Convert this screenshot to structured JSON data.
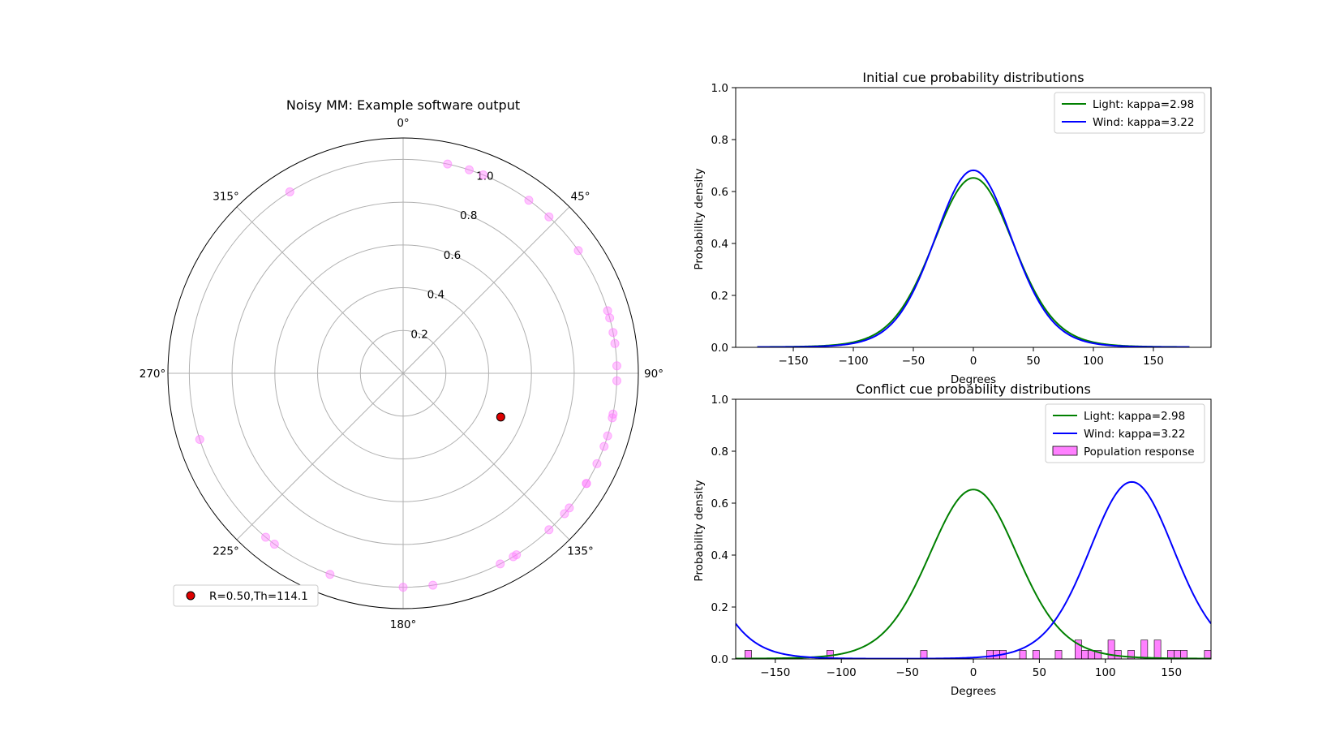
{
  "chart_data": [
    {
      "type": "scatter",
      "projection": "polar",
      "title": "Noisy MM: Example software output",
      "theta_zero_location": "top",
      "theta_direction": "clockwise",
      "angle_tick_labels": [
        "0°",
        "45°",
        "90°",
        "135°",
        "180°",
        "225°",
        "270°",
        "315°"
      ],
      "radial_ticks": [
        0.2,
        0.4,
        0.6,
        0.8,
        1.0
      ],
      "radial_tick_labels": [
        "0.2",
        "0.4",
        "0.6",
        "0.8",
        "1.0"
      ],
      "rlim": [
        0,
        1.1
      ],
      "grid": true,
      "series": [
        {
          "name": "",
          "role": "individual responses",
          "color": "#ff80ff",
          "r": 1.0,
          "theta_deg": [
            -32,
            12,
            18,
            22,
            36,
            43,
            55,
            73,
            75,
            79,
            82,
            88,
            92,
            101,
            102,
            107,
            110,
            115,
            121,
            121,
            129,
            131,
            137,
            148,
            149,
            153,
            172,
            180,
            200,
            217,
            220,
            252
          ]
        },
        {
          "name": "R=0.50,Th=114.1",
          "role": "mean vector",
          "color": "#dd0000",
          "r": 0.5,
          "theta_deg": 114.1
        }
      ],
      "legend": {
        "location": "bottom-left",
        "entries": [
          "R=0.50,Th=114.1"
        ]
      }
    },
    {
      "type": "line",
      "title": "Initial cue probability distributions",
      "xlabel": "Degrees",
      "ylabel": "Probability density",
      "xlim": [
        -198,
        198
      ],
      "ylim": [
        0,
        1.0
      ],
      "x_ticks": [
        -150,
        -100,
        -50,
        0,
        50,
        100,
        150
      ],
      "x_tick_labels": [
        "−150",
        "−100",
        "−50",
        "0",
        "50",
        "100",
        "150"
      ],
      "y_ticks": [
        0.0,
        0.2,
        0.4,
        0.6,
        0.8,
        1.0
      ],
      "y_tick_labels": [
        "0.0",
        "0.2",
        "0.4",
        "0.6",
        "0.8",
        "1.0"
      ],
      "x_range": [
        -180,
        180
      ],
      "series": [
        {
          "name": "Light: kappa=2.98",
          "color": "#008000",
          "distribution": "von Mises",
          "kappa": 2.98,
          "mu": 0
        },
        {
          "name": "Wind: kappa=3.22",
          "color": "#0000ff",
          "distribution": "von Mises",
          "kappa": 3.22,
          "mu": 0
        }
      ],
      "legend": {
        "location": "top-right",
        "entries": [
          "Light: kappa=2.98",
          "Wind: kappa=3.22"
        ]
      }
    },
    {
      "type": "line",
      "title": "Conflict cue probability distributions",
      "xlabel": "Degrees",
      "ylabel": "Probability density",
      "xlim": [
        -180,
        180
      ],
      "ylim": [
        0,
        1.0
      ],
      "x_ticks": [
        -150,
        -100,
        -50,
        0,
        50,
        100,
        150
      ],
      "x_tick_labels": [
        "−150",
        "−100",
        "−50",
        "0",
        "50",
        "100",
        "150"
      ],
      "y_ticks": [
        0.0,
        0.2,
        0.4,
        0.6,
        0.8,
        1.0
      ],
      "y_tick_labels": [
        "0.0",
        "0.2",
        "0.4",
        "0.6",
        "0.8",
        "1.0"
      ],
      "x_range": [
        -180,
        180
      ],
      "series": [
        {
          "name": "Light: kappa=2.98",
          "color": "#008000",
          "distribution": "von Mises",
          "kappa": 2.98,
          "mu": 0
        },
        {
          "name": "Wind: kappa=3.22",
          "color": "#0000ff",
          "distribution": "von Mises",
          "kappa": 3.22,
          "mu": 120
        }
      ],
      "histogram": {
        "name": "Population response",
        "color": "#ff80ff",
        "edgecolor": "#000000",
        "bin_width": 5,
        "bins": [
          {
            "x0": -173,
            "density": 0.033
          },
          {
            "x0": -111,
            "density": 0.033
          },
          {
            "x0": -40,
            "density": 0.033
          },
          {
            "x0": 10,
            "density": 0.033
          },
          {
            "x0": 15,
            "density": 0.033
          },
          {
            "x0": 20,
            "density": 0.033
          },
          {
            "x0": 35,
            "density": 0.033
          },
          {
            "x0": 45,
            "density": 0.033
          },
          {
            "x0": 62,
            "density": 0.033
          },
          {
            "x0": 77,
            "density": 0.073
          },
          {
            "x0": 82,
            "density": 0.033
          },
          {
            "x0": 87,
            "density": 0.033
          },
          {
            "x0": 92,
            "density": 0.033
          },
          {
            "x0": 102,
            "density": 0.073
          },
          {
            "x0": 107,
            "density": 0.033
          },
          {
            "x0": 117,
            "density": 0.033
          },
          {
            "x0": 127,
            "density": 0.073
          },
          {
            "x0": 137,
            "density": 0.073
          },
          {
            "x0": 147,
            "density": 0.033
          },
          {
            "x0": 152,
            "density": 0.033
          },
          {
            "x0": 157,
            "density": 0.033
          },
          {
            "x0": 175,
            "density": 0.033
          }
        ]
      },
      "legend": {
        "location": "top-right",
        "entries": [
          "Light: kappa=2.98",
          "Wind: kappa=3.22",
          "Population response"
        ]
      }
    }
  ]
}
